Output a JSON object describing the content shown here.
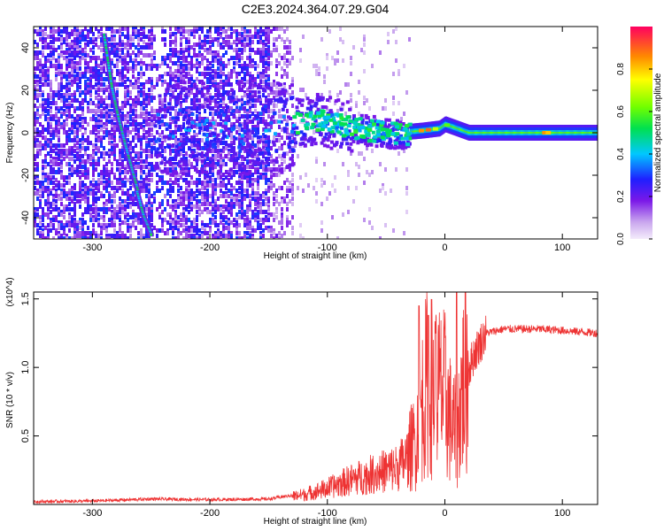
{
  "title": "C2E3.2024.364.07.29.G04",
  "chart_data": [
    {
      "type": "heatmap",
      "xlabel": "Height of straight line (km)",
      "ylabel": "Frequency (Hz)",
      "xlim": [
        -350,
        130
      ],
      "ylim": [
        -50,
        50
      ],
      "x_ticks": [
        "-300",
        "-200",
        "-100",
        "0",
        "100"
      ],
      "y_ticks": [
        "-40",
        "-20",
        "0",
        "20",
        "40"
      ],
      "colorbar": {
        "label": "Normalized spectral amplitude",
        "range": [
          0,
          1
        ],
        "ticks": [
          "0.0",
          "0.2",
          "0.4",
          "0.6",
          "0.8"
        ]
      },
      "features": [
        {
          "name": "steep track",
          "points": [
            [
              -290,
              46
            ],
            [
              -283,
              20
            ],
            [
              -277,
              5
            ],
            [
              -270,
              -10
            ],
            [
              -261,
              -28
            ]
          ]
        },
        {
          "name": "lower track",
          "points": [
            [
              -262,
              -28
            ],
            [
              -256,
              -40
            ],
            [
              -250,
              -48
            ]
          ]
        },
        {
          "name": "main carrier",
          "points": [
            [
              -150,
              3
            ],
            [
              -110,
              7
            ],
            [
              -70,
              2
            ],
            [
              -40,
              0
            ],
            [
              -20,
              1
            ],
            [
              -5,
              2
            ],
            [
              0,
              4
            ],
            [
              20,
              0
            ],
            [
              60,
              0
            ],
            [
              130,
              0
            ]
          ]
        }
      ]
    },
    {
      "type": "line",
      "xlabel": "Height of straight line (km)",
      "ylabel": "SNR (10 * v/v)",
      "multiplier": "(x10^4)",
      "xlim": [
        -350,
        130
      ],
      "ylim": [
        0,
        1.55
      ],
      "x_ticks": [
        "-300",
        "-200",
        "-100",
        "0",
        "100"
      ],
      "y_ticks": [
        "0.5",
        "1.0",
        "1.5"
      ],
      "color": "#ee3333",
      "envelope": [
        [
          -350,
          0.02
        ],
        [
          -300,
          0.025
        ],
        [
          -250,
          0.04
        ],
        [
          -200,
          0.035
        ],
        [
          -150,
          0.04
        ],
        [
          -120,
          0.08
        ],
        [
          -100,
          0.13
        ],
        [
          -80,
          0.2
        ],
        [
          -60,
          0.25
        ],
        [
          -40,
          0.3
        ],
        [
          -25,
          0.45
        ],
        [
          -20,
          0.7
        ],
        [
          -15,
          0.9
        ],
        [
          -10,
          0.85
        ],
        [
          0,
          0.8
        ],
        [
          5,
          0.6
        ],
        [
          10,
          0.5
        ],
        [
          15,
          0.85
        ],
        [
          25,
          1.1
        ],
        [
          35,
          1.25
        ],
        [
          50,
          1.28
        ],
        [
          80,
          1.28
        ],
        [
          100,
          1.27
        ],
        [
          130,
          1.25
        ]
      ],
      "spikes": [
        [
          -22,
          1.45
        ],
        [
          -14,
          1.38
        ],
        [
          -8,
          1.25
        ],
        [
          10,
          1.55
        ]
      ]
    }
  ]
}
